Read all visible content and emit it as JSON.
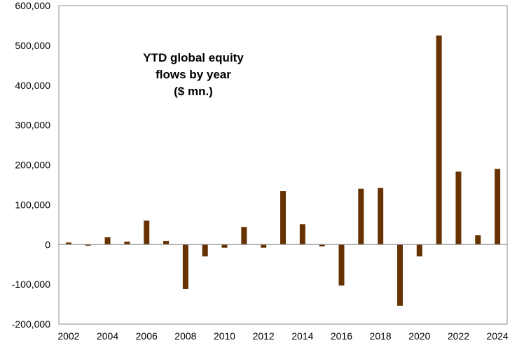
{
  "chart_data": {
    "type": "bar",
    "title": "YTD global equity flows by year ($ mn.)",
    "title_lines": [
      "YTD global equity",
      "flows by year",
      "($ mn.)"
    ],
    "xlabel": "",
    "ylabel": "",
    "ylim": [
      -200000,
      600000
    ],
    "y_ticks": [
      600000,
      500000,
      400000,
      300000,
      200000,
      100000,
      0,
      -100000,
      -200000
    ],
    "y_tick_labels": [
      "600,000",
      "500,000",
      "400,000",
      "300,000",
      "200,000",
      "100,000",
      "0",
      "-100,000",
      "-200,000"
    ],
    "x_tick_labels": [
      "2002",
      "2004",
      "2006",
      "2008",
      "2010",
      "2012",
      "2014",
      "2016",
      "2018",
      "2020",
      "2022",
      "2024"
    ],
    "categories": [
      "2002",
      "2003",
      "2004",
      "2005",
      "2006",
      "2007",
      "2008",
      "2009",
      "2010",
      "2011",
      "2012",
      "2013",
      "2014",
      "2015",
      "2016",
      "2017",
      "2018",
      "2019",
      "2020",
      "2021",
      "2022",
      "2023",
      "2024"
    ],
    "values": [
      5000,
      -3000,
      18000,
      7000,
      60000,
      9000,
      -112000,
      -30000,
      -8000,
      44000,
      -8000,
      134000,
      51000,
      -5000,
      -103000,
      140000,
      142000,
      -154000,
      -30000,
      525000,
      183000,
      23000,
      190000
    ],
    "bar_color": "#663300",
    "grid": false,
    "legend": "none"
  }
}
